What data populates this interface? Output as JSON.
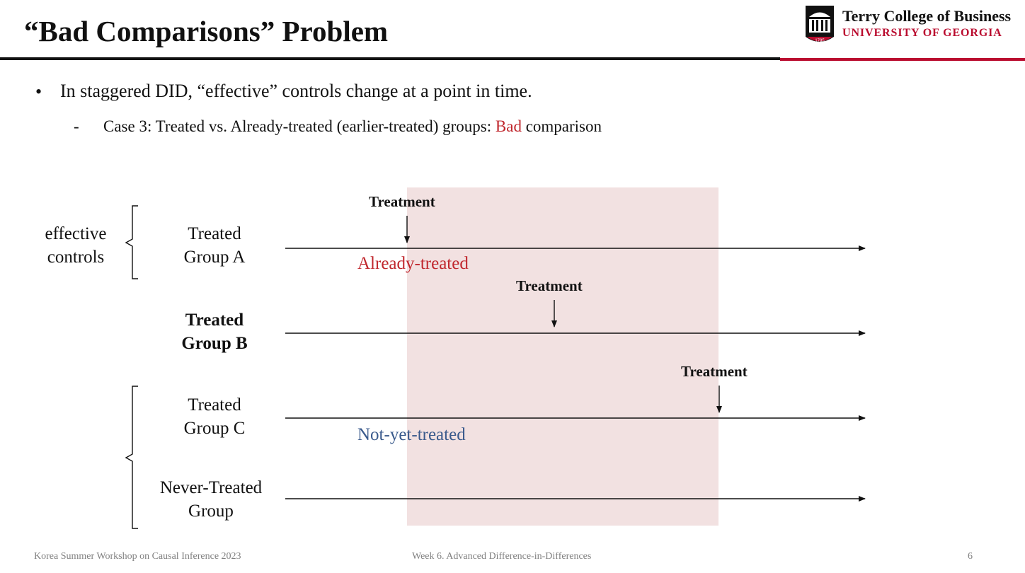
{
  "header": {
    "title": "“Bad Comparisons” Problem",
    "brand_line1": "Terry College of Business",
    "brand_line2": "UNIVERSITY OF GEORGIA",
    "seal_text": "1785",
    "accent_color": "#ba0c2f"
  },
  "body": {
    "bullet": "In staggered DID, “effective” controls change at a point in time.",
    "sub_dash": "-",
    "sub_prefix": "Case 3: Treated vs. Already-treated (earlier-treated) groups: ",
    "sub_highlight": "Bad",
    "sub_suffix": " comparison"
  },
  "diagram": {
    "brace_label": [
      "effective",
      "controls"
    ],
    "groups": [
      {
        "lines": [
          "Treated",
          "Group A"
        ],
        "bold": false
      },
      {
        "lines": [
          "Treated",
          "Group B"
        ],
        "bold": true
      },
      {
        "lines": [
          "Treated",
          "Group C"
        ],
        "bold": false
      },
      {
        "lines": [
          "Never-Treated",
          "Group"
        ],
        "bold": false
      }
    ],
    "treatment_label": "Treatment",
    "already_treated": "Already-treated",
    "not_yet_treated": "Not-yet-treated",
    "highlight_color": "#f2e1e1",
    "already_color": "#c0272d",
    "not_yet_color": "#3a5a8c"
  },
  "footer": {
    "left": "Korea Summer Workshop on Causal Inference 2023",
    "center": "Week 6. Advanced Difference-in-Differences",
    "page": "6"
  }
}
